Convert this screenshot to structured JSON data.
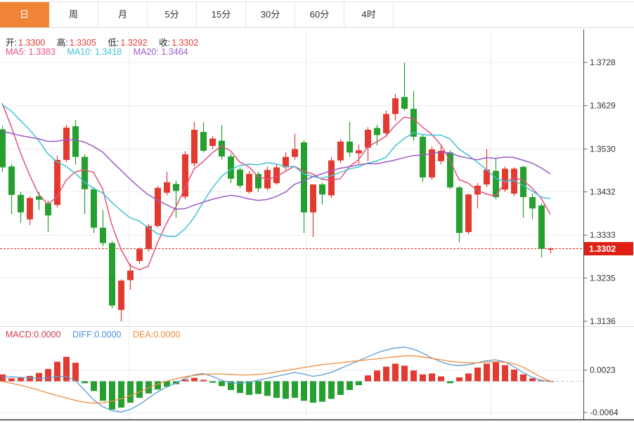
{
  "tabs": {
    "items": [
      {
        "label": "日",
        "active": true
      },
      {
        "label": "周",
        "active": false
      },
      {
        "label": "月",
        "active": false
      },
      {
        "label": "5分",
        "active": false
      },
      {
        "label": "15分",
        "active": false
      },
      {
        "label": "30分",
        "active": false
      },
      {
        "label": "60分",
        "active": false
      },
      {
        "label": "4时",
        "active": false
      }
    ]
  },
  "ohlc": {
    "open_label": "开:",
    "open": "1.3300",
    "high_label": "高:",
    "high": "1.3305",
    "low_label": "低:",
    "low": "1.3292",
    "close_label": "收:",
    "close": "1.3302"
  },
  "ma_legend": {
    "ma5_label": "MA5:",
    "ma5": "1.3383",
    "ma10_label": "MA10:",
    "ma10": "1.3418",
    "ma20_label": "MA20:",
    "ma20": "1.3464"
  },
  "macd_legend": {
    "macd_label": "MACD:",
    "macd": "0.0000",
    "diff_label": "DIFF:",
    "diff": "0.0000",
    "dea_label": "DEA:",
    "dea": "0.0000"
  },
  "colors": {
    "up": "#e33a30",
    "down": "#25a02e",
    "ma5": "#e4517c",
    "ma10": "#3fc3d3",
    "ma20": "#9c59c9",
    "diff_line": "#5b9bd5",
    "dea_line": "#ee8c3c",
    "price_line": "#e12b20",
    "badge_bg": "#e12015",
    "badge_text": "#ffffff",
    "tab_active_bg": "#f08437",
    "ohlc_value": "#e23d38",
    "macd_label": "#cf3c50",
    "diff_label": "#4a90db",
    "dea_label": "#ee8c3c",
    "grid": "#ececec",
    "axis_line": "#444444",
    "axis_text": "#333333",
    "zero_line": "#a9cbe8"
  },
  "chart_data": {
    "type": "candlestick",
    "price_panel": {
      "y_ticks": [
        1.3728,
        1.3629,
        1.353,
        1.3432,
        1.3333,
        1.3235,
        1.3136
      ],
      "current_price": 1.3302,
      "current_price_label": "1.3302",
      "ma_periods": [
        5,
        10,
        20
      ],
      "prior_closes": [
        1.35,
        1.3495,
        1.349,
        1.349,
        1.3495,
        1.35,
        1.351,
        1.352,
        1.3535,
        1.355,
        1.357,
        1.36,
        1.363,
        1.366,
        1.368,
        1.369,
        1.3685,
        1.367,
        1.364
      ],
      "candles": [
        [
          1.3575,
          1.3583,
          1.3478,
          1.3488
        ],
        [
          1.349,
          1.3496,
          1.3381,
          1.3425
        ],
        [
          1.3425,
          1.3432,
          1.3361,
          1.3385
        ],
        [
          1.3369,
          1.3422,
          1.3356,
          1.3418
        ],
        [
          1.3422,
          1.3432,
          1.339,
          1.3414
        ],
        [
          1.3406,
          1.3412,
          1.334,
          1.3378
        ],
        [
          1.3402,
          1.3515,
          1.3396,
          1.3505
        ],
        [
          1.3505,
          1.3585,
          1.35,
          1.3579
        ],
        [
          1.3582,
          1.3596,
          1.3494,
          1.3512
        ],
        [
          1.3512,
          1.3518,
          1.3381,
          1.3438
        ],
        [
          1.3438,
          1.3442,
          1.3338,
          1.335
        ],
        [
          1.335,
          1.339,
          1.3308,
          1.3315
        ],
        [
          1.3315,
          1.332,
          1.3165,
          1.3172
        ],
        [
          1.3162,
          1.3232,
          1.3136,
          1.3229
        ],
        [
          1.323,
          1.3268,
          1.3208,
          1.3252
        ],
        [
          1.3274,
          1.3305,
          1.3268,
          1.3301
        ],
        [
          1.3301,
          1.3358,
          1.3295,
          1.3354
        ],
        [
          1.3354,
          1.3445,
          1.335,
          1.3441
        ],
        [
          1.343,
          1.3478,
          1.3424,
          1.3454
        ],
        [
          1.345,
          1.3458,
          1.3373,
          1.3434
        ],
        [
          1.3421,
          1.3525,
          1.3415,
          1.3518
        ],
        [
          1.3497,
          1.3592,
          1.349,
          1.3574
        ],
        [
          1.3569,
          1.3591,
          1.3522,
          1.3526
        ],
        [
          1.3537,
          1.356,
          1.353,
          1.3554
        ],
        [
          1.3549,
          1.3585,
          1.3506,
          1.3513
        ],
        [
          1.3513,
          1.352,
          1.3452,
          1.3462
        ],
        [
          1.3483,
          1.3488,
          1.344,
          1.3446
        ],
        [
          1.3432,
          1.348,
          1.3428,
          1.3473
        ],
        [
          1.3473,
          1.3478,
          1.3432,
          1.344
        ],
        [
          1.344,
          1.349,
          1.3435,
          1.3482
        ],
        [
          1.3452,
          1.3496,
          1.3448,
          1.3488
        ],
        [
          1.3488,
          1.3522,
          1.3482,
          1.3512
        ],
        [
          1.3512,
          1.3565,
          1.3505,
          1.353
        ],
        [
          1.3545,
          1.355,
          1.3338,
          1.3385
        ],
        [
          1.3385,
          1.3449,
          1.3329,
          1.3449
        ],
        [
          1.3449,
          1.3453,
          1.3403,
          1.3426
        ],
        [
          1.3424,
          1.3512,
          1.3418,
          1.3504
        ],
        [
          1.3504,
          1.3552,
          1.3498,
          1.3547
        ],
        [
          1.3547,
          1.3592,
          1.3512,
          1.3522
        ],
        [
          1.352,
          1.354,
          1.3496,
          1.3527
        ],
        [
          1.3533,
          1.358,
          1.3502,
          1.3574
        ],
        [
          1.3578,
          1.3585,
          1.3538,
          1.3562
        ],
        [
          1.3566,
          1.3618,
          1.3558,
          1.361
        ],
        [
          1.361,
          1.3656,
          1.3595,
          1.3646
        ],
        [
          1.3649,
          1.3728,
          1.3618,
          1.3622
        ],
        [
          1.3622,
          1.3663,
          1.3548,
          1.3558
        ],
        [
          1.3558,
          1.3562,
          1.3455,
          1.3465
        ],
        [
          1.3465,
          1.3536,
          1.346,
          1.3529
        ],
        [
          1.3502,
          1.3537,
          1.3495,
          1.3526
        ],
        [
          1.3522,
          1.3527,
          1.3438,
          1.3442
        ],
        [
          1.3442,
          1.3446,
          1.3317,
          1.3338
        ],
        [
          1.334,
          1.3428,
          1.3335,
          1.3426
        ],
        [
          1.3426,
          1.3452,
          1.3394,
          1.3446
        ],
        [
          1.3449,
          1.353,
          1.3443,
          1.3483
        ],
        [
          1.348,
          1.351,
          1.3415,
          1.342
        ],
        [
          1.3437,
          1.349,
          1.3432,
          1.3485
        ],
        [
          1.3428,
          1.3488,
          1.3422,
          1.3485
        ],
        [
          1.3489,
          1.3492,
          1.3373,
          1.342
        ],
        [
          1.342,
          1.3428,
          1.337,
          1.3394
        ],
        [
          1.3401,
          1.3406,
          1.3282,
          1.3302
        ],
        [
          1.33,
          1.3305,
          1.3292,
          1.3302
        ]
      ]
    },
    "macd_panel": {
      "y_ticks": [
        0.0023,
        -0.0064
      ],
      "hist": [
        0.0014,
        0.0006,
        0.0007,
        0.0011,
        0.0017,
        0.0025,
        0.004,
        0.005,
        0.0038,
        -0.0004,
        -0.002,
        -0.004,
        -0.0058,
        -0.0054,
        -0.0044,
        -0.0034,
        -0.0025,
        -0.0017,
        -0.0011,
        -0.0006,
        0.0004,
        0.0007,
        0.0003,
        -0.0003,
        -0.001,
        -0.0018,
        -0.0024,
        -0.0028,
        -0.0026,
        -0.003,
        -0.0034,
        -0.0036,
        -0.0034,
        -0.004,
        -0.0044,
        -0.0042,
        -0.0036,
        -0.0028,
        -0.0018,
        -0.0008,
        0.0012,
        0.0022,
        0.003,
        0.0036,
        0.0032,
        0.0022,
        0.0014,
        0.0016,
        0.001,
        -0.0004,
        0.0008,
        0.0016,
        0.0028,
        0.0036,
        0.004,
        0.0033,
        0.0024,
        0.0014,
        0.0006,
        0.0002,
        0.0
      ],
      "diff": [
        0.0008,
        0.0009,
        0.0008,
        0.0007,
        0.0006,
        0.0007,
        0.0009,
        0.001,
        0.0002,
        -0.0018,
        -0.0038,
        -0.0052,
        -0.006,
        -0.0063,
        -0.0058,
        -0.0048,
        -0.0035,
        -0.0022,
        -0.0012,
        -0.0004,
        0.0006,
        0.0013,
        0.0016,
        0.001,
        0.0002,
        -0.0003,
        -0.0004,
        -0.0002,
        0.0002,
        0.0006,
        0.001,
        0.0014,
        0.0018,
        0.0015,
        0.001,
        0.0013,
        0.0018,
        0.0026,
        0.0034,
        0.0042,
        0.005,
        0.0058,
        0.0064,
        0.0068,
        0.007,
        0.0066,
        0.0058,
        0.0048,
        0.004,
        0.0034,
        0.0032,
        0.0034,
        0.0038,
        0.0042,
        0.0044,
        0.004,
        0.003,
        0.0018,
        0.0008,
        0.0002,
        0.0
      ],
      "dea": [
        0.0,
        -0.0004,
        -0.0008,
        -0.0013,
        -0.0018,
        -0.0024,
        -0.0029,
        -0.0034,
        -0.0039,
        -0.0043,
        -0.0045,
        -0.0044,
        -0.0041,
        -0.0036,
        -0.003,
        -0.0022,
        -0.0014,
        -0.0006,
        0.0,
        0.0005,
        0.0009,
        0.0012,
        0.0014,
        0.0015,
        0.0015,
        0.0014,
        0.0013,
        0.0013,
        0.0014,
        0.0016,
        0.0019,
        0.0022,
        0.0025,
        0.0028,
        0.0031,
        0.0034,
        0.0036,
        0.0038,
        0.004,
        0.0042,
        0.0044,
        0.0046,
        0.0048,
        0.005,
        0.0052,
        0.0052,
        0.005,
        0.0047,
        0.0044,
        0.0041,
        0.0039,
        0.0038,
        0.0038,
        0.0039,
        0.004,
        0.0039,
        0.0036,
        0.0029,
        0.0019,
        0.0008,
        0.0
      ]
    },
    "x_gridlines": [
      183,
      435,
      698
    ],
    "legend_position": "top-left",
    "grid": true
  }
}
